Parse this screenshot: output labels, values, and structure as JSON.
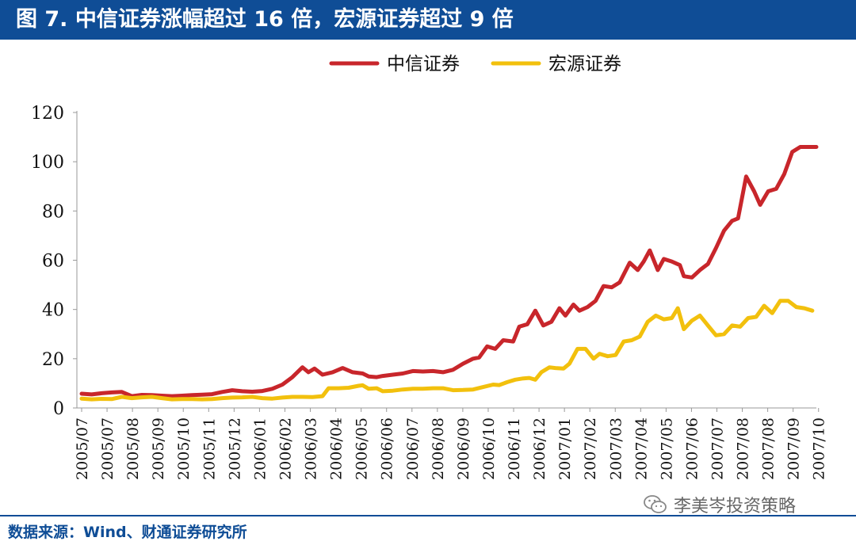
{
  "header": {
    "title": "图 7. 中信证券涨幅超过 16 倍，宏源证券超过 9 倍"
  },
  "footer": {
    "source": "数据来源：Wind、财通证券研究所"
  },
  "watermark": {
    "text": "李美岑投资策略",
    "icon": "wechat-icon"
  },
  "colors": {
    "header_bg": "#0f4d96",
    "citic": "#c8262b",
    "hongyuan": "#f2c00d"
  },
  "chart_data": {
    "type": "line",
    "title": "图 7. 中信证券涨幅超过 16 倍，宏源证券超过 9 倍",
    "xlabel": "",
    "ylabel": "",
    "ylim": [
      0,
      120
    ],
    "yticks": [
      0,
      20,
      40,
      60,
      80,
      100,
      120
    ],
    "grid": false,
    "legend": "top-right",
    "categories": [
      "2005/07",
      "2005/07",
      "2005/08",
      "2005/09",
      "2005/10",
      "2005/11",
      "2005/12",
      "2006/01",
      "2006/02",
      "2006/03",
      "2006/04",
      "2006/05",
      "2006/06",
      "2006/07",
      "2006/08",
      "2006/09",
      "2006/10",
      "2006/11",
      "2006/12",
      "2007/01",
      "2007/02",
      "2007/03",
      "2007/04",
      "2007/05",
      "2007/06",
      "2007/07",
      "2007/08",
      "2007/08",
      "2007/09",
      "2007/10"
    ],
    "series": [
      {
        "name": "中信证券",
        "color": "#c8262b",
        "points": [
          [
            0,
            5.8
          ],
          [
            0.5,
            5.5
          ],
          [
            1.0,
            6.0
          ],
          [
            1.5,
            6.3
          ],
          [
            2.0,
            6.5
          ],
          [
            2.5,
            4.8
          ],
          [
            3.0,
            5.3
          ],
          [
            3.5,
            5.2
          ],
          [
            4.0,
            5.0
          ],
          [
            4.5,
            4.8
          ],
          [
            5.0,
            5.0
          ],
          [
            5.5,
            5.2
          ],
          [
            6.0,
            5.4
          ],
          [
            6.5,
            5.6
          ],
          [
            7.0,
            6.5
          ],
          [
            7.5,
            7.2
          ],
          [
            8.0,
            6.8
          ],
          [
            8.5,
            6.6
          ],
          [
            9.0,
            6.9
          ],
          [
            9.5,
            7.8
          ],
          [
            10.0,
            9.5
          ],
          [
            10.5,
            12.5
          ],
          [
            11.0,
            16.5
          ],
          [
            11.3,
            14.5
          ],
          [
            11.6,
            16.0
          ],
          [
            12.0,
            13.5
          ],
          [
            12.5,
            14.5
          ],
          [
            13.0,
            16.2
          ],
          [
            13.5,
            14.5
          ],
          [
            14.0,
            14.0
          ],
          [
            14.3,
            12.8
          ],
          [
            14.7,
            12.5
          ],
          [
            15.0,
            13.0
          ],
          [
            15.5,
            13.5
          ],
          [
            16.0,
            14.0
          ],
          [
            16.5,
            15.0
          ],
          [
            17.0,
            14.8
          ],
          [
            17.5,
            15.0
          ],
          [
            18.0,
            14.5
          ],
          [
            18.5,
            15.5
          ],
          [
            19.0,
            18.0
          ],
          [
            19.5,
            20.0
          ],
          [
            19.8,
            20.5
          ],
          [
            20.2,
            25.0
          ],
          [
            20.6,
            24.0
          ],
          [
            21.0,
            27.5
          ],
          [
            21.5,
            27.0
          ],
          [
            21.8,
            33.0
          ],
          [
            22.2,
            34.0
          ],
          [
            22.6,
            39.5
          ],
          [
            23.0,
            33.5
          ],
          [
            23.4,
            35.0
          ],
          [
            23.8,
            40.5
          ],
          [
            24.1,
            37.5
          ],
          [
            24.5,
            42.0
          ],
          [
            24.8,
            39.5
          ],
          [
            25.2,
            41.0
          ],
          [
            25.6,
            43.5
          ],
          [
            26.0,
            49.5
          ],
          [
            26.4,
            49.0
          ],
          [
            26.8,
            51.0
          ],
          [
            27.3,
            59.0
          ],
          [
            27.7,
            56.0
          ],
          [
            28.0,
            59.5
          ],
          [
            28.3,
            64.0
          ],
          [
            28.7,
            56.0
          ],
          [
            29.0,
            60.5
          ],
          [
            29.4,
            59.5
          ],
          [
            29.8,
            58.0
          ],
          [
            30.0,
            53.5
          ],
          [
            30.4,
            53.0
          ],
          [
            30.8,
            56.0
          ],
          [
            31.2,
            58.5
          ],
          [
            31.6,
            65.0
          ],
          [
            32.0,
            72.0
          ],
          [
            32.4,
            76.0
          ],
          [
            32.7,
            77.0
          ],
          [
            33.1,
            94.0
          ],
          [
            33.5,
            88.0
          ],
          [
            33.8,
            82.5
          ],
          [
            34.2,
            88.0
          ],
          [
            34.6,
            89.0
          ],
          [
            35.0,
            95.0
          ],
          [
            35.4,
            104.0
          ],
          [
            35.8,
            106.0
          ],
          [
            36.3,
            106.0
          ],
          [
            36.6,
            106.0
          ]
        ]
      },
      {
        "name": "宏源证券",
        "color": "#f2c00d",
        "points": [
          [
            0,
            3.8
          ],
          [
            0.5,
            3.5
          ],
          [
            1.0,
            3.7
          ],
          [
            1.5,
            3.6
          ],
          [
            2.0,
            4.5
          ],
          [
            2.5,
            4.0
          ],
          [
            3.0,
            4.3
          ],
          [
            3.5,
            4.5
          ],
          [
            4.0,
            4.0
          ],
          [
            4.5,
            3.5
          ],
          [
            5.0,
            3.6
          ],
          [
            5.5,
            3.6
          ],
          [
            6.0,
            3.5
          ],
          [
            6.5,
            3.6
          ],
          [
            7.0,
            4.0
          ],
          [
            7.5,
            4.2
          ],
          [
            8.0,
            4.3
          ],
          [
            8.5,
            4.5
          ],
          [
            9.0,
            4.0
          ],
          [
            9.5,
            3.8
          ],
          [
            10.0,
            4.2
          ],
          [
            10.5,
            4.5
          ],
          [
            11.0,
            4.5
          ],
          [
            11.5,
            4.4
          ],
          [
            12.0,
            4.8
          ],
          [
            12.3,
            8.0
          ],
          [
            12.8,
            8.0
          ],
          [
            13.3,
            8.2
          ],
          [
            13.8,
            9.0
          ],
          [
            14.0,
            9.2
          ],
          [
            14.3,
            7.8
          ],
          [
            14.7,
            8.0
          ],
          [
            15.0,
            6.8
          ],
          [
            15.5,
            7.0
          ],
          [
            16.0,
            7.5
          ],
          [
            16.5,
            7.8
          ],
          [
            17.0,
            7.8
          ],
          [
            17.5,
            8.0
          ],
          [
            18.0,
            8.0
          ],
          [
            18.5,
            7.2
          ],
          [
            19.0,
            7.3
          ],
          [
            19.5,
            7.5
          ],
          [
            20.0,
            8.5
          ],
          [
            20.5,
            9.5
          ],
          [
            20.8,
            9.3
          ],
          [
            21.2,
            10.5
          ],
          [
            21.6,
            11.5
          ],
          [
            22.0,
            12.0
          ],
          [
            22.3,
            12.2
          ],
          [
            22.6,
            11.5
          ],
          [
            22.9,
            14.5
          ],
          [
            23.3,
            16.5
          ],
          [
            23.6,
            16.2
          ],
          [
            24.0,
            16.0
          ],
          [
            24.3,
            18.0
          ],
          [
            24.7,
            24.0
          ],
          [
            25.1,
            24.0
          ],
          [
            25.5,
            20.0
          ],
          [
            25.8,
            22.0
          ],
          [
            26.2,
            21.0
          ],
          [
            26.6,
            21.5
          ],
          [
            27.0,
            27.0
          ],
          [
            27.4,
            27.5
          ],
          [
            27.8,
            29.0
          ],
          [
            28.2,
            35.0
          ],
          [
            28.6,
            37.5
          ],
          [
            29.0,
            36.0
          ],
          [
            29.4,
            36.5
          ],
          [
            29.7,
            40.5
          ],
          [
            30.0,
            32.0
          ],
          [
            30.4,
            35.5
          ],
          [
            30.8,
            37.5
          ],
          [
            31.2,
            33.5
          ],
          [
            31.6,
            29.5
          ],
          [
            32.0,
            30.0
          ],
          [
            32.4,
            33.5
          ],
          [
            32.8,
            33.0
          ],
          [
            33.2,
            36.5
          ],
          [
            33.6,
            37.0
          ],
          [
            34.0,
            41.5
          ],
          [
            34.4,
            38.5
          ],
          [
            34.8,
            43.5
          ],
          [
            35.2,
            43.5
          ],
          [
            35.6,
            41.0
          ],
          [
            36.0,
            40.5
          ],
          [
            36.4,
            39.5
          ]
        ]
      }
    ]
  }
}
